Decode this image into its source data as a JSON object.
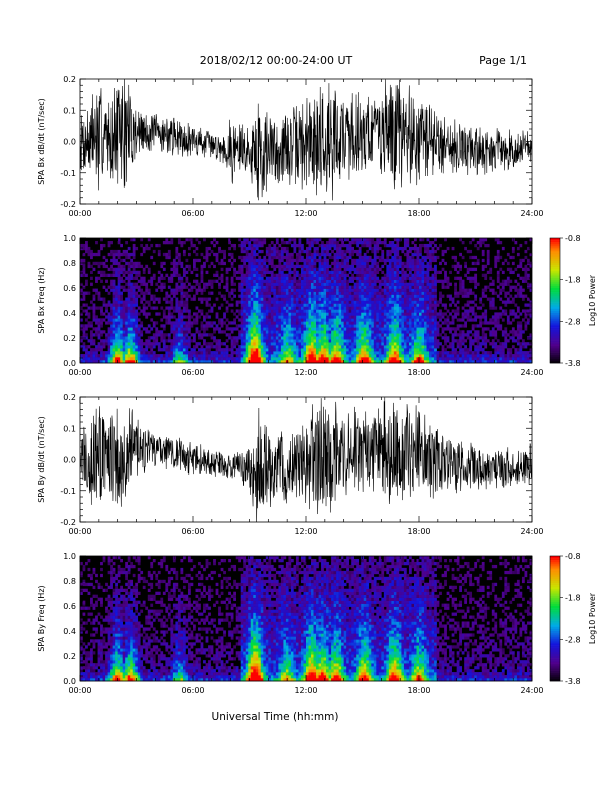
{
  "page": {
    "title": "2018/02/12  00:00-24:00 UT",
    "page_label": "Page 1/1",
    "xlabel": "Universal Time (hh:mm)"
  },
  "colors": {
    "background": "#ffffff",
    "waveform": "#000000",
    "spectrogram_floor": "#000000"
  },
  "chart_data": [
    {
      "type": "line",
      "name": "bx-waveform",
      "ylabel": "SPA Bx dB/dt (nT/sec)",
      "ylim": [
        -0.2,
        0.2
      ],
      "yticks": [
        -0.2,
        -0.1,
        0.0,
        0.1,
        0.2
      ],
      "ytick_labels": [
        "-0.2",
        "-0.1",
        "0.0",
        "0.1",
        "0.2"
      ],
      "xlim_hours": [
        0,
        24
      ],
      "xticks": [
        "00:00",
        "06:00",
        "12:00",
        "18:00",
        "24:00"
      ],
      "envelope_hours": [
        0,
        1,
        1.5,
        2,
        2.5,
        3,
        3.5,
        4,
        5,
        6,
        7,
        7.5,
        8,
        8.5,
        9,
        9.5,
        10,
        11,
        12,
        12.5,
        13,
        13.5,
        14,
        15,
        16,
        16.5,
        17,
        17.5,
        18,
        19,
        20,
        21,
        22,
        23,
        24
      ],
      "envelope_amplitude": [
        0.1,
        0.22,
        0.12,
        0.22,
        0.22,
        0.1,
        0.08,
        0.07,
        0.07,
        0.06,
        0.05,
        0.05,
        0.12,
        0.12,
        0.08,
        0.22,
        0.15,
        0.13,
        0.18,
        0.22,
        0.22,
        0.2,
        0.17,
        0.16,
        0.15,
        0.22,
        0.2,
        0.2,
        0.16,
        0.12,
        0.1,
        0.09,
        0.08,
        0.07,
        0.07
      ]
    },
    {
      "type": "heatmap",
      "name": "bx-spectrogram",
      "ylabel": "SPA Bx Freq (Hz)",
      "ylim": [
        0.0,
        1.0
      ],
      "yticks": [
        0.0,
        0.2,
        0.4,
        0.6,
        0.8,
        1.0
      ],
      "ytick_labels": [
        "0.0",
        "0.2",
        "0.4",
        "0.6",
        "0.8",
        "1.0"
      ],
      "xlim_hours": [
        0,
        24
      ],
      "xticks": [
        "00:00",
        "06:00",
        "12:00",
        "18:00",
        "24:00"
      ],
      "colorbar": {
        "label": "Log10 Power",
        "range": [
          -3.8,
          -0.8
        ],
        "tick_labels": [
          "-0.8",
          "-1.8",
          "-2.8",
          "-3.8"
        ]
      },
      "activity_hours": [
        2.0,
        2.7,
        5.3,
        9.3,
        11.0,
        12.3,
        12.9,
        13.6,
        15.1,
        16.7,
        18.0
      ],
      "activity_strength": [
        0.6,
        0.6,
        0.3,
        0.8,
        0.35,
        0.7,
        0.6,
        0.55,
        0.55,
        0.6,
        0.45
      ]
    },
    {
      "type": "line",
      "name": "by-waveform",
      "ylabel": "SPA By dB/dt (nT/sec)",
      "ylim": [
        -0.2,
        0.2
      ],
      "yticks": [
        -0.2,
        -0.1,
        0.0,
        0.1,
        0.2
      ],
      "ytick_labels": [
        "-0.2",
        "-0.1",
        "0.0",
        "0.1",
        "0.2"
      ],
      "xlim_hours": [
        0,
        24
      ],
      "xticks": [
        "00:00",
        "06:00",
        "12:00",
        "18:00",
        "24:00"
      ],
      "envelope_hours": [
        0,
        1,
        1.5,
        2,
        2.5,
        3,
        3.5,
        4,
        5,
        6,
        7,
        7.5,
        8,
        8.5,
        9,
        9.5,
        10,
        11,
        12,
        12.5,
        13,
        13.5,
        14,
        15,
        16,
        16.5,
        17,
        17.5,
        18,
        19,
        20,
        21,
        22,
        23,
        24
      ],
      "envelope_amplitude": [
        0.12,
        0.22,
        0.14,
        0.22,
        0.22,
        0.12,
        0.08,
        0.07,
        0.07,
        0.06,
        0.05,
        0.05,
        0.05,
        0.06,
        0.08,
        0.22,
        0.14,
        0.12,
        0.16,
        0.22,
        0.22,
        0.2,
        0.17,
        0.16,
        0.15,
        0.22,
        0.2,
        0.2,
        0.16,
        0.12,
        0.1,
        0.09,
        0.08,
        0.07,
        0.07
      ]
    },
    {
      "type": "heatmap",
      "name": "by-spectrogram",
      "ylabel": "SPA By Freq (Hz)",
      "ylim": [
        0.0,
        1.0
      ],
      "yticks": [
        0.0,
        0.2,
        0.4,
        0.6,
        0.8,
        1.0
      ],
      "ytick_labels": [
        "0.0",
        "0.2",
        "0.4",
        "0.6",
        "0.8",
        "1.0"
      ],
      "xlim_hours": [
        0,
        24
      ],
      "xticks": [
        "00:00",
        "06:00",
        "12:00",
        "18:00",
        "24:00"
      ],
      "colorbar": {
        "label": "Log10 Power",
        "range": [
          -3.8,
          -0.8
        ],
        "tick_labels": [
          "-0.8",
          "-1.8",
          "-2.8",
          "-3.8"
        ]
      },
      "activity_hours": [
        2.0,
        2.7,
        5.3,
        9.3,
        11.0,
        12.3,
        12.9,
        13.6,
        15.1,
        16.7,
        18.0
      ],
      "activity_strength": [
        0.6,
        0.6,
        0.3,
        0.85,
        0.35,
        0.7,
        0.6,
        0.55,
        0.55,
        0.6,
        0.45
      ]
    }
  ]
}
